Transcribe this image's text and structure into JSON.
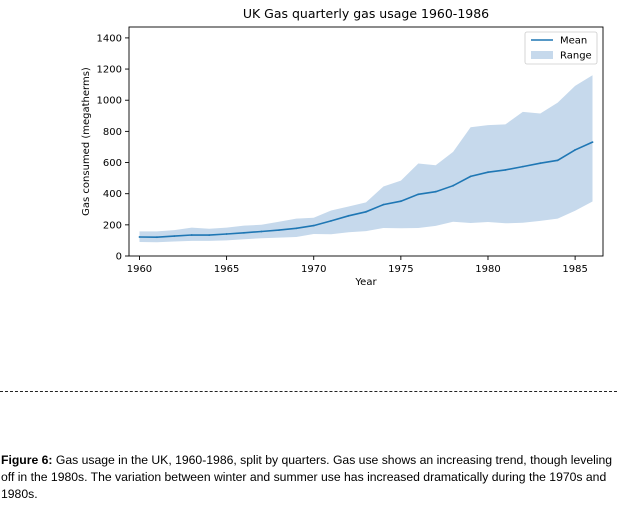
{
  "chart_data": {
    "type": "area",
    "title": "UK Gas quarterly gas usage 1960-1986",
    "xlabel": "Year",
    "ylabel": "Gas consumed (megatherms)",
    "xlim": [
      1959.4,
      1986.6
    ],
    "ylim": [
      0,
      1470
    ],
    "xticks": [
      1960,
      1965,
      1970,
      1975,
      1980,
      1985
    ],
    "yticks": [
      0,
      200,
      400,
      600,
      800,
      1000,
      1200,
      1400
    ],
    "grid": false,
    "legend_position": "top-right",
    "x": [
      1960,
      1961,
      1962,
      1963,
      1964,
      1965,
      1966,
      1967,
      1968,
      1969,
      1970,
      1971,
      1972,
      1973,
      1974,
      1975,
      1976,
      1977,
      1978,
      1979,
      1980,
      1981,
      1982,
      1983,
      1984,
      1985,
      1986
    ],
    "series": [
      {
        "name": "Mean",
        "type": "line",
        "color": "#1f77b4",
        "values": [
          122,
          121,
          128,
          135,
          134,
          141,
          149,
          157,
          166,
          178,
          195,
          225,
          258,
          284,
          330,
          352,
          396,
          413,
          451,
          511,
          538,
          553,
          574,
          596,
          614,
          681,
          731
        ]
      },
      {
        "name": "Range",
        "type": "band",
        "color": "#c6d9ec",
        "lower": [
          90,
          88,
          93,
          97,
          97,
          100,
          107,
          114,
          118,
          122,
          141,
          140,
          153,
          160,
          180,
          178,
          180,
          193,
          220,
          212,
          218,
          210,
          213,
          225,
          240,
          290,
          350
        ],
        "upper": [
          158,
          158,
          166,
          182,
          175,
          182,
          195,
          200,
          220,
          240,
          245,
          292,
          318,
          344,
          446,
          484,
          594,
          583,
          668,
          826,
          840,
          845,
          925,
          915,
          985,
          1092,
          1160
        ]
      }
    ]
  },
  "caption": {
    "label": "Figure 6:",
    "text": " Gas usage in the UK, 1960-1986, split by quarters. Gas use shows an increasing trend, though leveling off in the 1980s. The variation between winter and summer use has increased dramatically during the 1970s and 1980s."
  }
}
